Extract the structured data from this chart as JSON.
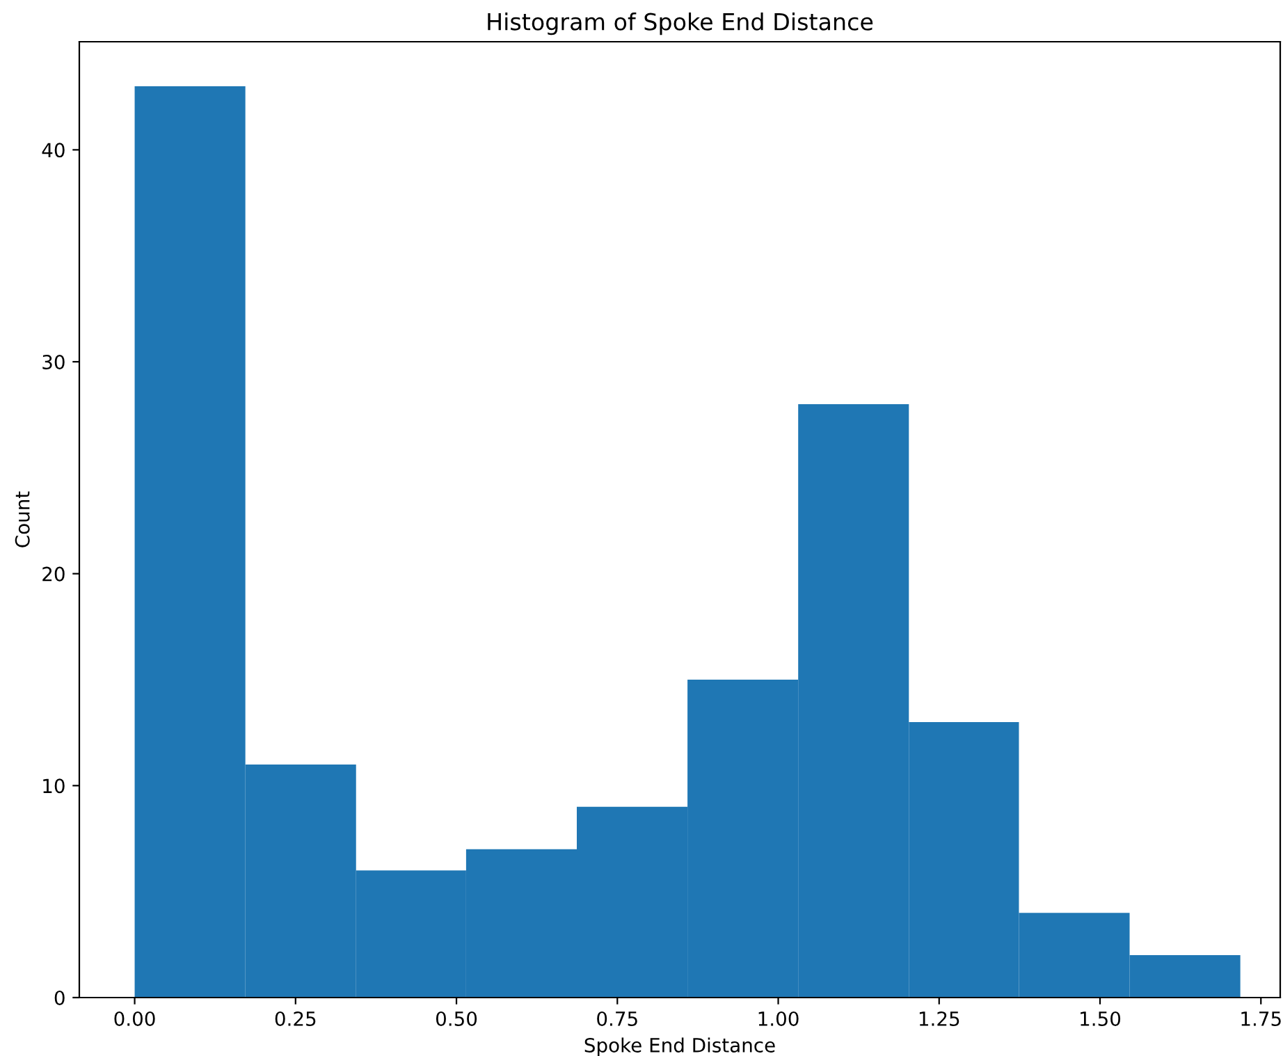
{
  "chart_data": {
    "type": "histogram",
    "title": "Histogram of Spoke End Distance",
    "xlabel": "Spoke End Distance",
    "ylabel": "Count",
    "bins": [
      0.0,
      0.172,
      0.344,
      0.515,
      0.687,
      0.859,
      1.031,
      1.203,
      1.374,
      1.546,
      1.718
    ],
    "values": [
      43,
      11,
      6,
      7,
      9,
      15,
      28,
      13,
      4,
      2
    ],
    "color": "#1f77b4",
    "xlim": [
      -0.086,
      1.78
    ],
    "ylim": [
      0,
      45.1
    ],
    "xticks": [
      {
        "value": 0,
        "label": "0.00"
      },
      {
        "value": 0.25,
        "label": "0.25"
      },
      {
        "value": 0.5,
        "label": "0.50"
      },
      {
        "value": 0.75,
        "label": "0.75"
      },
      {
        "value": 1.0,
        "label": "1.00"
      },
      {
        "value": 1.25,
        "label": "1.25"
      },
      {
        "value": 1.5,
        "label": "1.50"
      },
      {
        "value": 1.75,
        "label": "1.75"
      }
    ],
    "yticks": [
      0,
      10,
      20,
      30,
      40
    ],
    "grid": false
  }
}
